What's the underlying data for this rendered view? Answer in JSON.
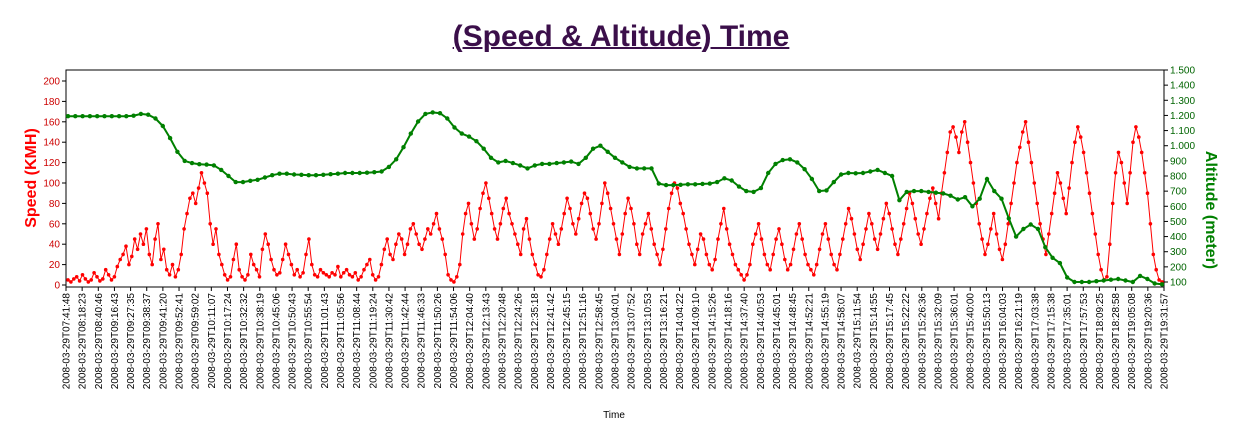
{
  "chart_data": {
    "type": "line",
    "title": "(Speed & Altitude) Time",
    "xlabel": "Time",
    "ylabel": "Speed (KMH)",
    "y2label": "Altitude (meter)",
    "ylim": [
      0,
      210
    ],
    "y2lim": [
      0,
      1500
    ],
    "yticks": [
      "0",
      "20",
      "40",
      "60",
      "80",
      "100",
      "120",
      "140",
      "160",
      "180",
      "200"
    ],
    "y2ticks": [
      "100",
      "200",
      "300",
      "400",
      "500",
      "600",
      "700",
      "800",
      "900",
      "1.000",
      "1.100",
      "1.200",
      "1.300",
      "1.400",
      "1.500"
    ],
    "colors": {
      "speed": "#ff0000",
      "altitude": "#008000",
      "title": "#3b0f4a"
    },
    "grid": false,
    "x_ticklabels": [
      "2008-03-29T07:41:48",
      "2008-03-29T08:18:23",
      "2008-03-29T08:40:46",
      "2008-03-29T09:16:43",
      "2008-03-29T09:27:35",
      "2008-03-29T09:38:37",
      "2008-03-29T09:41:20",
      "2008-03-29T09:52:41",
      "2008-03-29T09:59:02",
      "2008-03-29T10:11:07",
      "2008-03-29T10:17:24",
      "2008-03-29T10:32:32",
      "2008-03-29T10:38:19",
      "2008-03-29T10:45:06",
      "2008-03-29T10:50:43",
      "2008-03-29T10:55:54",
      "2008-03-29T11:01:43",
      "2008-03-29T11:05:56",
      "2008-03-29T11:08:44",
      "2008-03-29T11:19:24",
      "2008-03-29T11:30:42",
      "2008-03-29T11:42:44",
      "2008-03-29T11:46:33",
      "2008-03-29T11:50:26",
      "2008-03-29T11:54:06",
      "2008-03-29T12:04:40",
      "2008-03-29T12:13:43",
      "2008-03-29T12:20:48",
      "2008-03-29T12:24:26",
      "2008-03-29T12:35:18",
      "2008-03-29T12:41:42",
      "2008-03-29T12:45:15",
      "2008-03-29T12:51:16",
      "2008-03-29T12:58:45",
      "2008-03-29T13:04:01",
      "2008-03-29T13:07:52",
      "2008-03-29T13:10:53",
      "2008-03-29T13:16:21",
      "2008-03-29T14:04:22",
      "2008-03-29T14:09:10",
      "2008-03-29T14:15:26",
      "2008-03-29T14:18:16",
      "2008-03-29T14:37:40",
      "2008-03-29T14:40:53",
      "2008-03-29T14:45:01",
      "2008-03-29T14:48:45",
      "2008-03-29T14:52:21",
      "2008-03-29T14:55:19",
      "2008-03-29T14:58:07",
      "2008-03-29T15:11:54",
      "2008-03-29T15:14:55",
      "2008-03-29T15:17:45",
      "2008-03-29T15:22:22",
      "2008-03-29T15:26:36",
      "2008-03-29T15:32:09",
      "2008-03-29T15:36:01",
      "2008-03-29T15:40:00",
      "2008-03-29T15:50:13",
      "2008-03-29T16:04:03",
      "2008-03-29T16:21:19",
      "2008-03-29T17:03:38",
      "2008-03-29T17:15:38",
      "2008-03-29T17:35:01",
      "2008-03-29T17:57:53",
      "2008-03-29T18:09:25",
      "2008-03-29T18:28:58",
      "2008-03-29T19:05:08",
      "2008-03-29T19:20:36",
      "2008-03-29T19:31:57"
    ],
    "series": [
      {
        "name": "Speed (KMH)",
        "axis": "left",
        "values": [
          5,
          3,
          6,
          8,
          4,
          10,
          6,
          3,
          5,
          12,
          8,
          4,
          6,
          15,
          10,
          5,
          8,
          18,
          25,
          30,
          38,
          20,
          28,
          45,
          35,
          50,
          40,
          55,
          30,
          20,
          45,
          60,
          25,
          35,
          15,
          10,
          20,
          8,
          15,
          30,
          55,
          70,
          85,
          90,
          80,
          95,
          110,
          100,
          90,
          60,
          40,
          55,
          30,
          20,
          10,
          5,
          8,
          25,
          40,
          15,
          8,
          5,
          10,
          30,
          20,
          15,
          8,
          35,
          50,
          40,
          25,
          15,
          10,
          12,
          25,
          40,
          30,
          20,
          10,
          15,
          8,
          12,
          30,
          45,
          20,
          10,
          8,
          15,
          12,
          10,
          8,
          12,
          10,
          18,
          8,
          12,
          15,
          10,
          8,
          12,
          5,
          8,
          15,
          20,
          25,
          10,
          5,
          8,
          20,
          35,
          45,
          30,
          25,
          40,
          50,
          45,
          30,
          40,
          55,
          60,
          50,
          40,
          35,
          45,
          55,
          50,
          60,
          70,
          55,
          45,
          30,
          10,
          5,
          3,
          8,
          20,
          50,
          70,
          80,
          60,
          45,
          55,
          75,
          90,
          100,
          85,
          70,
          55,
          45,
          60,
          75,
          85,
          70,
          60,
          50,
          40,
          30,
          55,
          65,
          45,
          30,
          20,
          10,
          8,
          15,
          30,
          45,
          60,
          50,
          40,
          55,
          70,
          85,
          75,
          60,
          50,
          65,
          80,
          90,
          85,
          70,
          55,
          45,
          60,
          80,
          100,
          90,
          75,
          60,
          45,
          30,
          50,
          70,
          85,
          75,
          60,
          40,
          30,
          50,
          60,
          70,
          55,
          40,
          30,
          20,
          35,
          55,
          75,
          90,
          100,
          95,
          80,
          70,
          55,
          40,
          30,
          20,
          35,
          50,
          45,
          30,
          20,
          15,
          25,
          45,
          60,
          75,
          55,
          40,
          30,
          20,
          15,
          10,
          5,
          10,
          20,
          40,
          50,
          60,
          45,
          30,
          20,
          15,
          30,
          45,
          55,
          40,
          25,
          15,
          20,
          35,
          50,
          60,
          45,
          30,
          20,
          15,
          10,
          20,
          35,
          50,
          60,
          45,
          30,
          20,
          15,
          30,
          45,
          60,
          75,
          65,
          50,
          35,
          25,
          40,
          55,
          70,
          60,
          45,
          35,
          50,
          65,
          80,
          70,
          55,
          40,
          30,
          45,
          60,
          75,
          90,
          80,
          65,
          50,
          40,
          55,
          70,
          85,
          95,
          80,
          65,
          90,
          110,
          130,
          150,
          155,
          145,
          130,
          150,
          160,
          140,
          120,
          100,
          80,
          60,
          45,
          30,
          40,
          55,
          70,
          50,
          35,
          25,
          40,
          60,
          80,
          100,
          120,
          135,
          150,
          160,
          140,
          120,
          100,
          80,
          60,
          45,
          30,
          50,
          70,
          90,
          110,
          100,
          85,
          70,
          95,
          120,
          140,
          155,
          145,
          130,
          110,
          90,
          70,
          50,
          30,
          15,
          5,
          8,
          40,
          80,
          110,
          130,
          120,
          100,
          80,
          110,
          140,
          155,
          145,
          130,
          110,
          90,
          60,
          30,
          15,
          5,
          3
        ]
      },
      {
        "name": "Altitude (meter)",
        "axis": "right",
        "values": [
          1195,
          1195,
          1195,
          1195,
          1195,
          1195,
          1195,
          1195,
          1195,
          1198,
          1210,
          1205,
          1180,
          1130,
          1050,
          960,
          900,
          885,
          878,
          875,
          870,
          840,
          800,
          760,
          760,
          768,
          775,
          790,
          805,
          815,
          815,
          810,
          808,
          805,
          805,
          808,
          812,
          815,
          820,
          820,
          820,
          822,
          825,
          830,
          860,
          910,
          990,
          1080,
          1160,
          1210,
          1220,
          1215,
          1180,
          1120,
          1080,
          1060,
          1030,
          980,
          920,
          890,
          900,
          885,
          870,
          850,
          870,
          880,
          880,
          885,
          890,
          895,
          880,
          920,
          980,
          1000,
          960,
          920,
          890,
          860,
          850,
          850,
          850,
          750,
          740,
          740,
          742,
          745,
          745,
          748,
          750,
          760,
          785,
          770,
          730,
          700,
          695,
          720,
          820,
          880,
          905,
          910,
          890,
          845,
          780,
          700,
          705,
          760,
          810,
          820,
          818,
          820,
          830,
          840,
          820,
          800,
          640,
          695,
          700,
          700,
          695,
          690,
          685,
          670,
          645,
          660,
          600,
          650,
          780,
          700,
          650,
          520,
          400,
          450,
          480,
          450,
          330,
          260,
          225,
          130,
          100,
          100,
          100,
          105,
          110,
          115,
          120,
          110,
          100,
          140,
          120,
          90,
          85
        ]
      }
    ]
  }
}
